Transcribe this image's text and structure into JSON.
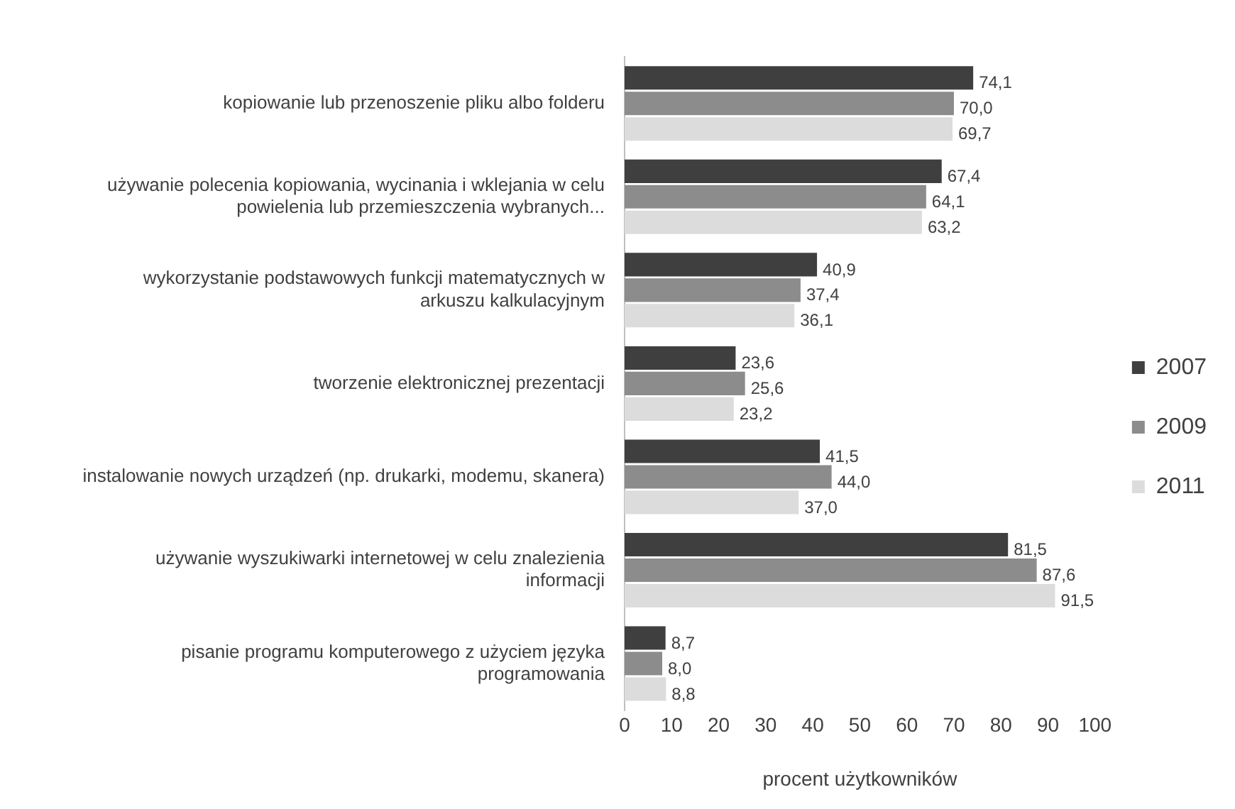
{
  "chart_data": {
    "type": "bar",
    "orientation": "horizontal",
    "xlabel": "procent użytkowników",
    "categories": [
      "kopiowanie lub przenoszenie pliku albo folderu",
      "używanie polecenia kopiowania, wycinania i wklejania w celu powielenia lub przemieszczenia wybranych...",
      "wykorzystanie podstawowych funkcji matematycznych w arkuszu kalkulacyjnym",
      "tworzenie elektronicznej prezentacji",
      "instalowanie nowych urządzeń (np. drukarki, modemu, skanera)",
      "używanie wyszukiwarki internetowej w celu znalezienia informacji",
      "pisanie programu komputerowego z użyciem języka programowania"
    ],
    "series": [
      {
        "name": "2007",
        "color": "#3f3f3f",
        "values": [
          74.1,
          67.4,
          40.9,
          23.6,
          41.5,
          81.5,
          8.7
        ],
        "value_labels": [
          "74,1",
          "67,4",
          "40,9",
          "23,6",
          "41,5",
          "81,5",
          "8,7"
        ]
      },
      {
        "name": "2009",
        "color": "#8c8c8c",
        "values": [
          70.0,
          64.1,
          37.4,
          25.6,
          44.0,
          87.6,
          8.0
        ],
        "value_labels": [
          "70,0",
          "64,1",
          "37,4",
          "25,6",
          "44,0",
          "87,6",
          "8,0"
        ]
      },
      {
        "name": "2011",
        "color": "#dcdcdc",
        "values": [
          69.7,
          63.2,
          36.1,
          23.2,
          37.0,
          91.5,
          8.8
        ],
        "value_labels": [
          "69,7",
          "63,2",
          "36,1",
          "23,2",
          "37,0",
          "91,5",
          "8,8"
        ]
      }
    ],
    "xlim": [
      0,
      100
    ],
    "xticks": [
      0,
      10,
      20,
      30,
      40,
      50,
      60,
      70,
      80,
      90,
      100
    ],
    "grid": false,
    "legend": "right"
  }
}
